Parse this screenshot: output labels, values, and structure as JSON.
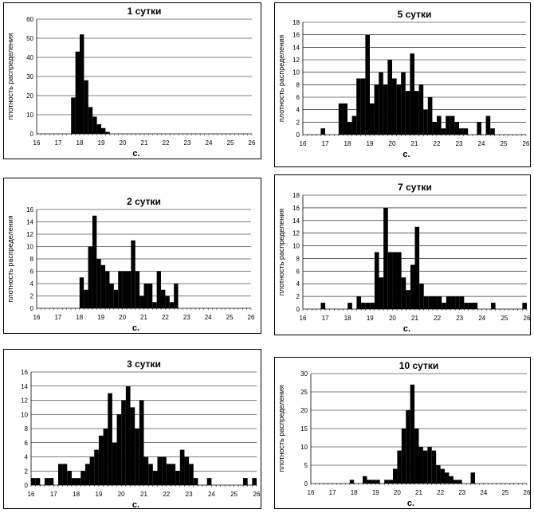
{
  "chart_data": [
    {
      "type": "bar",
      "title": "1 сутки",
      "xlabel": "с.",
      "ylabel": "плотность распределения",
      "xlim": [
        16,
        26
      ],
      "ylim": [
        0,
        60
      ],
      "xticks": [
        16,
        17,
        18,
        19,
        20,
        21,
        22,
        23,
        24,
        25,
        26
      ],
      "yticks": [
        0,
        10,
        20,
        30,
        40,
        50,
        60
      ],
      "bin_width": 0.2,
      "x": [
        17.0,
        17.2,
        17.4,
        17.6,
        17.8,
        18.0,
        18.2,
        18.4,
        18.6,
        18.8,
        19.0,
        19.2,
        19.4,
        19.6,
        19.8,
        20.0,
        20.2,
        20.4,
        20.6,
        20.8,
        21.0,
        21.2,
        21.4,
        21.6,
        21.8,
        22.0,
        22.2,
        22.4,
        22.6,
        22.8,
        23.0,
        23.2,
        23.4,
        23.6,
        23.8,
        24.0,
        24.2,
        24.4,
        24.6,
        24.8,
        25.0,
        25.2,
        25.4,
        25.6,
        25.8
      ],
      "values": [
        0,
        0,
        0,
        19,
        43,
        52,
        28,
        14,
        9,
        5,
        3,
        1,
        0,
        0,
        0,
        0,
        0,
        0,
        0,
        0,
        0,
        0,
        0,
        0,
        0,
        0,
        0,
        0,
        0,
        0,
        0,
        0,
        0,
        0,
        0,
        0,
        0,
        0,
        0,
        0,
        0,
        0,
        0,
        0,
        0
      ]
    },
    {
      "type": "bar",
      "title": "5 сутки",
      "xlabel": "с.",
      "ylabel": "плотность распределения",
      "xlim": [
        16,
        26
      ],
      "ylim": [
        0,
        18
      ],
      "xticks": [
        16,
        17,
        18,
        19,
        20,
        21,
        22,
        23,
        24,
        25,
        26
      ],
      "yticks": [
        0,
        2,
        4,
        6,
        8,
        10,
        12,
        14,
        16,
        18
      ],
      "bin_width": 0.2,
      "x": [
        16.8,
        17.0,
        17.2,
        17.4,
        17.6,
        17.8,
        18.0,
        18.2,
        18.4,
        18.6,
        18.8,
        19.0,
        19.2,
        19.4,
        19.6,
        19.8,
        20.0,
        20.2,
        20.4,
        20.6,
        20.8,
        21.0,
        21.2,
        21.4,
        21.6,
        21.8,
        22.0,
        22.2,
        22.4,
        22.6,
        22.8,
        23.0,
        23.2,
        23.4,
        23.6,
        23.8,
        24.0,
        24.2,
        24.4,
        24.6
      ],
      "values": [
        1,
        0,
        0,
        0,
        5,
        5,
        2,
        3,
        9,
        9,
        16,
        5,
        8,
        10,
        8,
        12,
        9,
        8,
        10,
        7,
        13,
        7,
        8,
        4,
        6,
        2,
        3,
        1,
        3,
        3,
        2,
        1,
        1,
        0,
        0,
        2,
        0,
        3,
        1,
        0
      ]
    },
    {
      "type": "bar",
      "title": "2 сутки",
      "xlabel": "с.",
      "ylabel": "плотность распределения",
      "xlim": [
        16,
        26
      ],
      "ylim": [
        0,
        16
      ],
      "xticks": [
        16,
        17,
        18,
        19,
        20,
        21,
        22,
        23,
        24,
        25,
        26
      ],
      "yticks": [
        0,
        2,
        4,
        6,
        8,
        10,
        12,
        14,
        16
      ],
      "bin_width": 0.2,
      "x": [
        17.8,
        18.0,
        18.2,
        18.4,
        18.6,
        18.8,
        19.0,
        19.2,
        19.4,
        19.6,
        19.8,
        20.0,
        20.2,
        20.4,
        20.6,
        20.8,
        21.0,
        21.2,
        21.4,
        21.6,
        21.8,
        22.0,
        22.2,
        22.4,
        22.6
      ],
      "values": [
        0,
        5,
        3,
        10,
        15,
        8,
        7,
        6,
        4,
        3,
        6,
        6,
        6,
        11,
        6,
        2,
        4,
        4,
        1,
        6,
        3,
        2,
        1,
        4,
        0
      ]
    },
    {
      "type": "bar",
      "title": "7 сутки",
      "xlabel": "с.",
      "ylabel": "плотность распределения",
      "xlim": [
        16,
        26
      ],
      "ylim": [
        0,
        18
      ],
      "xticks": [
        16,
        17,
        18,
        19,
        20,
        21,
        22,
        23,
        24,
        25,
        26
      ],
      "yticks": [
        0,
        2,
        4,
        6,
        8,
        10,
        12,
        14,
        16,
        18
      ],
      "bin_width": 0.2,
      "x": [
        16.8,
        17.0,
        17.2,
        17.4,
        17.6,
        17.8,
        18.0,
        18.2,
        18.4,
        18.6,
        18.8,
        19.0,
        19.2,
        19.4,
        19.6,
        19.8,
        20.0,
        20.2,
        20.4,
        20.6,
        20.8,
        21.0,
        21.2,
        21.4,
        21.6,
        21.8,
        22.0,
        22.2,
        22.4,
        22.6,
        22.8,
        23.0,
        23.2,
        23.4,
        23.6,
        23.8,
        24.0,
        24.2,
        24.4,
        24.6,
        24.8,
        25.0,
        25.2,
        25.4,
        25.6,
        25.8
      ],
      "values": [
        1,
        0,
        0,
        0,
        0,
        0,
        1,
        0,
        2,
        1,
        1,
        1,
        9,
        5,
        16,
        9,
        9,
        9,
        5,
        3,
        7,
        13,
        4,
        2,
        2,
        2,
        2,
        1,
        2,
        2,
        2,
        2,
        1,
        1,
        1,
        0,
        0,
        0,
        1,
        0,
        0,
        0,
        0,
        0,
        0,
        1
      ]
    },
    {
      "type": "bar",
      "title": "3 сутки",
      "xlabel": "с.",
      "ylabel": "",
      "xlim": [
        16,
        26
      ],
      "ylim": [
        0,
        16
      ],
      "xticks": [
        16,
        17,
        18,
        19,
        20,
        21,
        22,
        23,
        24,
        25,
        26
      ],
      "yticks": [
        0,
        2,
        4,
        6,
        8,
        10,
        12,
        14,
        16
      ],
      "bin_width": 0.2,
      "x": [
        16.0,
        16.2,
        16.4,
        16.6,
        16.8,
        17.0,
        17.2,
        17.4,
        17.6,
        17.8,
        18.0,
        18.2,
        18.4,
        18.6,
        18.8,
        19.0,
        19.2,
        19.4,
        19.6,
        19.8,
        20.0,
        20.2,
        20.4,
        20.6,
        20.8,
        21.0,
        21.2,
        21.4,
        21.6,
        21.8,
        22.0,
        22.2,
        22.4,
        22.6,
        22.8,
        23.0,
        23.2,
        23.4,
        23.6,
        23.8,
        24.0,
        24.2,
        24.4,
        24.6,
        24.8,
        25.0,
        25.2,
        25.4,
        25.6,
        25.8
      ],
      "values": [
        1,
        1,
        0,
        1,
        1,
        0,
        3,
        3,
        2,
        1,
        1,
        2,
        3,
        4,
        5,
        7,
        8,
        13,
        6,
        10,
        12,
        14,
        11,
        8,
        12,
        4,
        3,
        2,
        4,
        4,
        3,
        3,
        2,
        5,
        4,
        3,
        1,
        0,
        0,
        1,
        0,
        0,
        0,
        0,
        0,
        0,
        0,
        1,
        0,
        1
      ]
    },
    {
      "type": "bar",
      "title": "10 сутки",
      "xlabel": "с.",
      "ylabel": "плотность распределения",
      "xlim": [
        16,
        26
      ],
      "ylim": [
        0,
        30
      ],
      "xticks": [
        16,
        17,
        18,
        19,
        20,
        21,
        22,
        23,
        24,
        25,
        26
      ],
      "yticks": [
        0,
        5,
        10,
        15,
        20,
        25,
        30
      ],
      "bin_width": 0.2,
      "x": [
        17.8,
        18.0,
        18.2,
        18.4,
        18.6,
        18.8,
        19.0,
        19.2,
        19.4,
        19.6,
        19.8,
        20.0,
        20.2,
        20.4,
        20.6,
        20.8,
        21.0,
        21.2,
        21.4,
        21.6,
        21.8,
        22.0,
        22.2,
        22.4,
        22.6,
        22.8,
        23.0,
        23.2,
        23.4
      ],
      "values": [
        1,
        0,
        0,
        2,
        1,
        1,
        1,
        0,
        1,
        1,
        4,
        9,
        15,
        20,
        27,
        15,
        10,
        9,
        10,
        9,
        5,
        4,
        3,
        2,
        1,
        1,
        0,
        0,
        3
      ]
    }
  ]
}
